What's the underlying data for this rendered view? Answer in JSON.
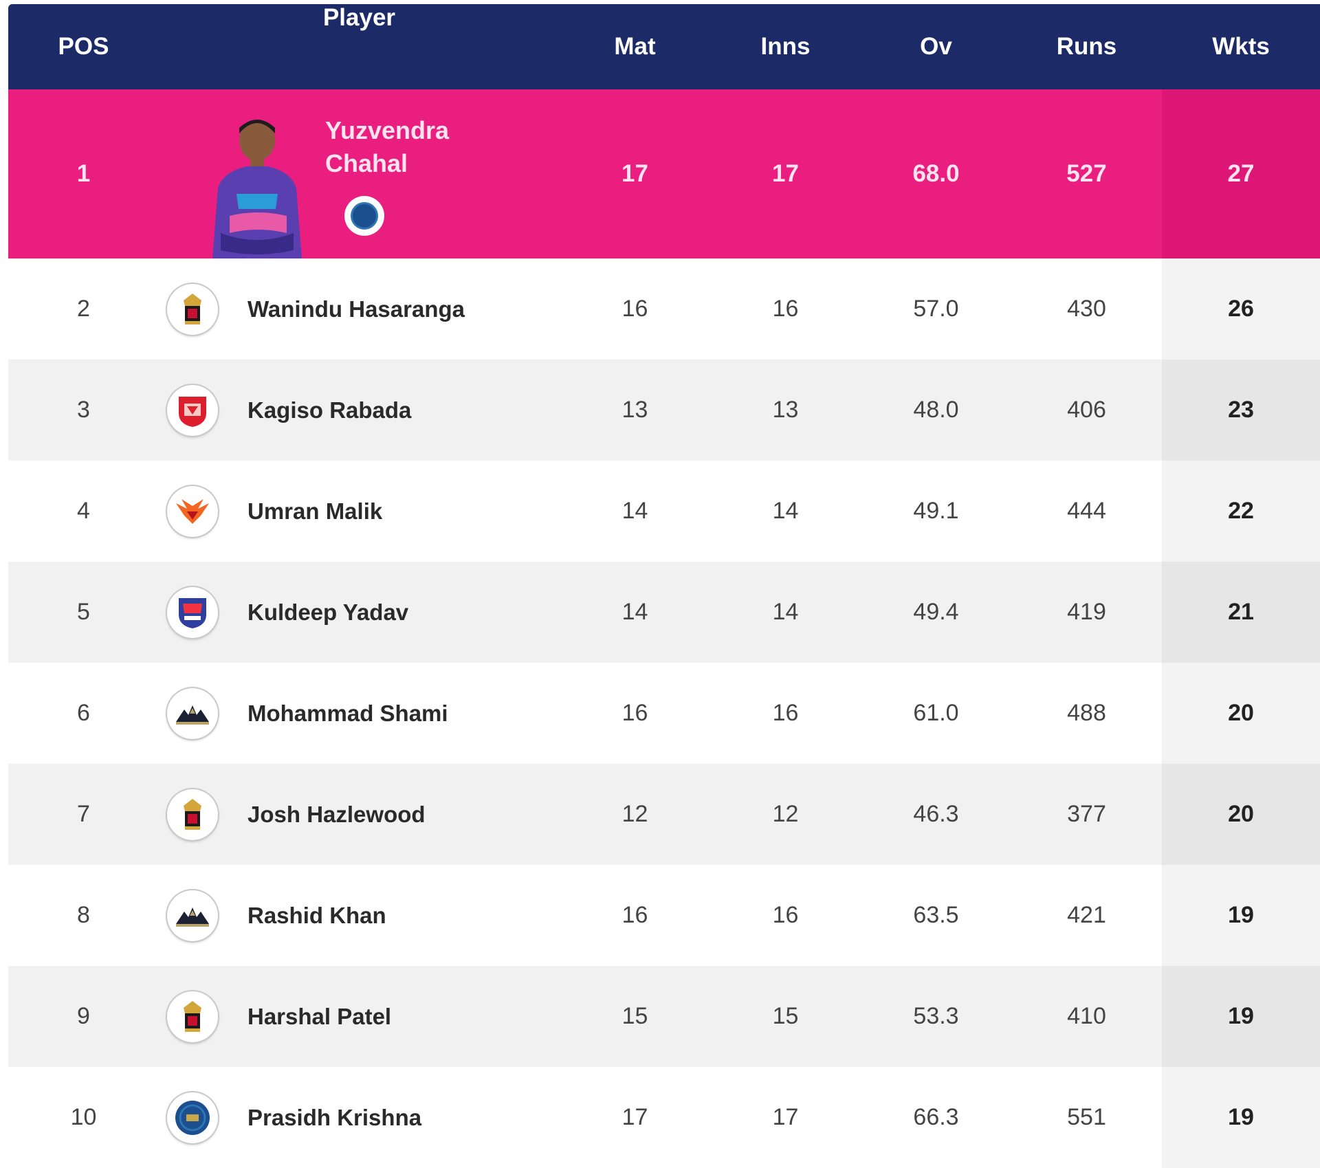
{
  "header": {
    "pos": "POS",
    "player": "Player",
    "mat": "Mat",
    "inns": "Inns",
    "ov": "Ov",
    "runs": "Runs",
    "wkts": "Wkts"
  },
  "leader": {
    "pos": "1",
    "name_line1": "Yuzvendra",
    "name_line2": "Chahal",
    "mat": "17",
    "inns": "17",
    "ov": "68.0",
    "runs": "527",
    "wkts": "27",
    "team_icon": "rajasthan-royals-badge-icon",
    "photo_icon": "player-photo"
  },
  "rows": [
    {
      "pos": "2",
      "name": "Wanindu Hasaranga",
      "mat": "16",
      "inns": "16",
      "ov": "57.0",
      "runs": "430",
      "wkts": "26",
      "team_icon": "rcb-logo-icon"
    },
    {
      "pos": "3",
      "name": "Kagiso Rabada",
      "mat": "13",
      "inns": "13",
      "ov": "48.0",
      "runs": "406",
      "wkts": "23",
      "team_icon": "punjab-kings-logo-icon"
    },
    {
      "pos": "4",
      "name": "Umran Malik",
      "mat": "14",
      "inns": "14",
      "ov": "49.1",
      "runs": "444",
      "wkts": "22",
      "team_icon": "sunrisers-logo-icon"
    },
    {
      "pos": "5",
      "name": "Kuldeep Yadav",
      "mat": "14",
      "inns": "14",
      "ov": "49.4",
      "runs": "419",
      "wkts": "21",
      "team_icon": "delhi-capitals-logo-icon"
    },
    {
      "pos": "6",
      "name": "Mohammad Shami",
      "mat": "16",
      "inns": "16",
      "ov": "61.0",
      "runs": "488",
      "wkts": "20",
      "team_icon": "gujarat-titans-logo-icon"
    },
    {
      "pos": "7",
      "name": "Josh Hazlewood",
      "mat": "12",
      "inns": "12",
      "ov": "46.3",
      "runs": "377",
      "wkts": "20",
      "team_icon": "rcb-logo-icon"
    },
    {
      "pos": "8",
      "name": "Rashid Khan",
      "mat": "16",
      "inns": "16",
      "ov": "63.5",
      "runs": "421",
      "wkts": "19",
      "team_icon": "gujarat-titans-logo-icon"
    },
    {
      "pos": "9",
      "name": "Harshal Patel",
      "mat": "15",
      "inns": "15",
      "ov": "53.3",
      "runs": "410",
      "wkts": "19",
      "team_icon": "rcb-logo-icon"
    },
    {
      "pos": "10",
      "name": "Prasidh Krishna",
      "mat": "17",
      "inns": "17",
      "ov": "66.3",
      "runs": "551",
      "wkts": "19",
      "team_icon": "rajasthan-royals-logo-icon"
    }
  ],
  "colors": {
    "header_bg": "#1c2b68",
    "leader_bg": "#e91e7f",
    "row_alt_bg": "#f1f1f1"
  }
}
